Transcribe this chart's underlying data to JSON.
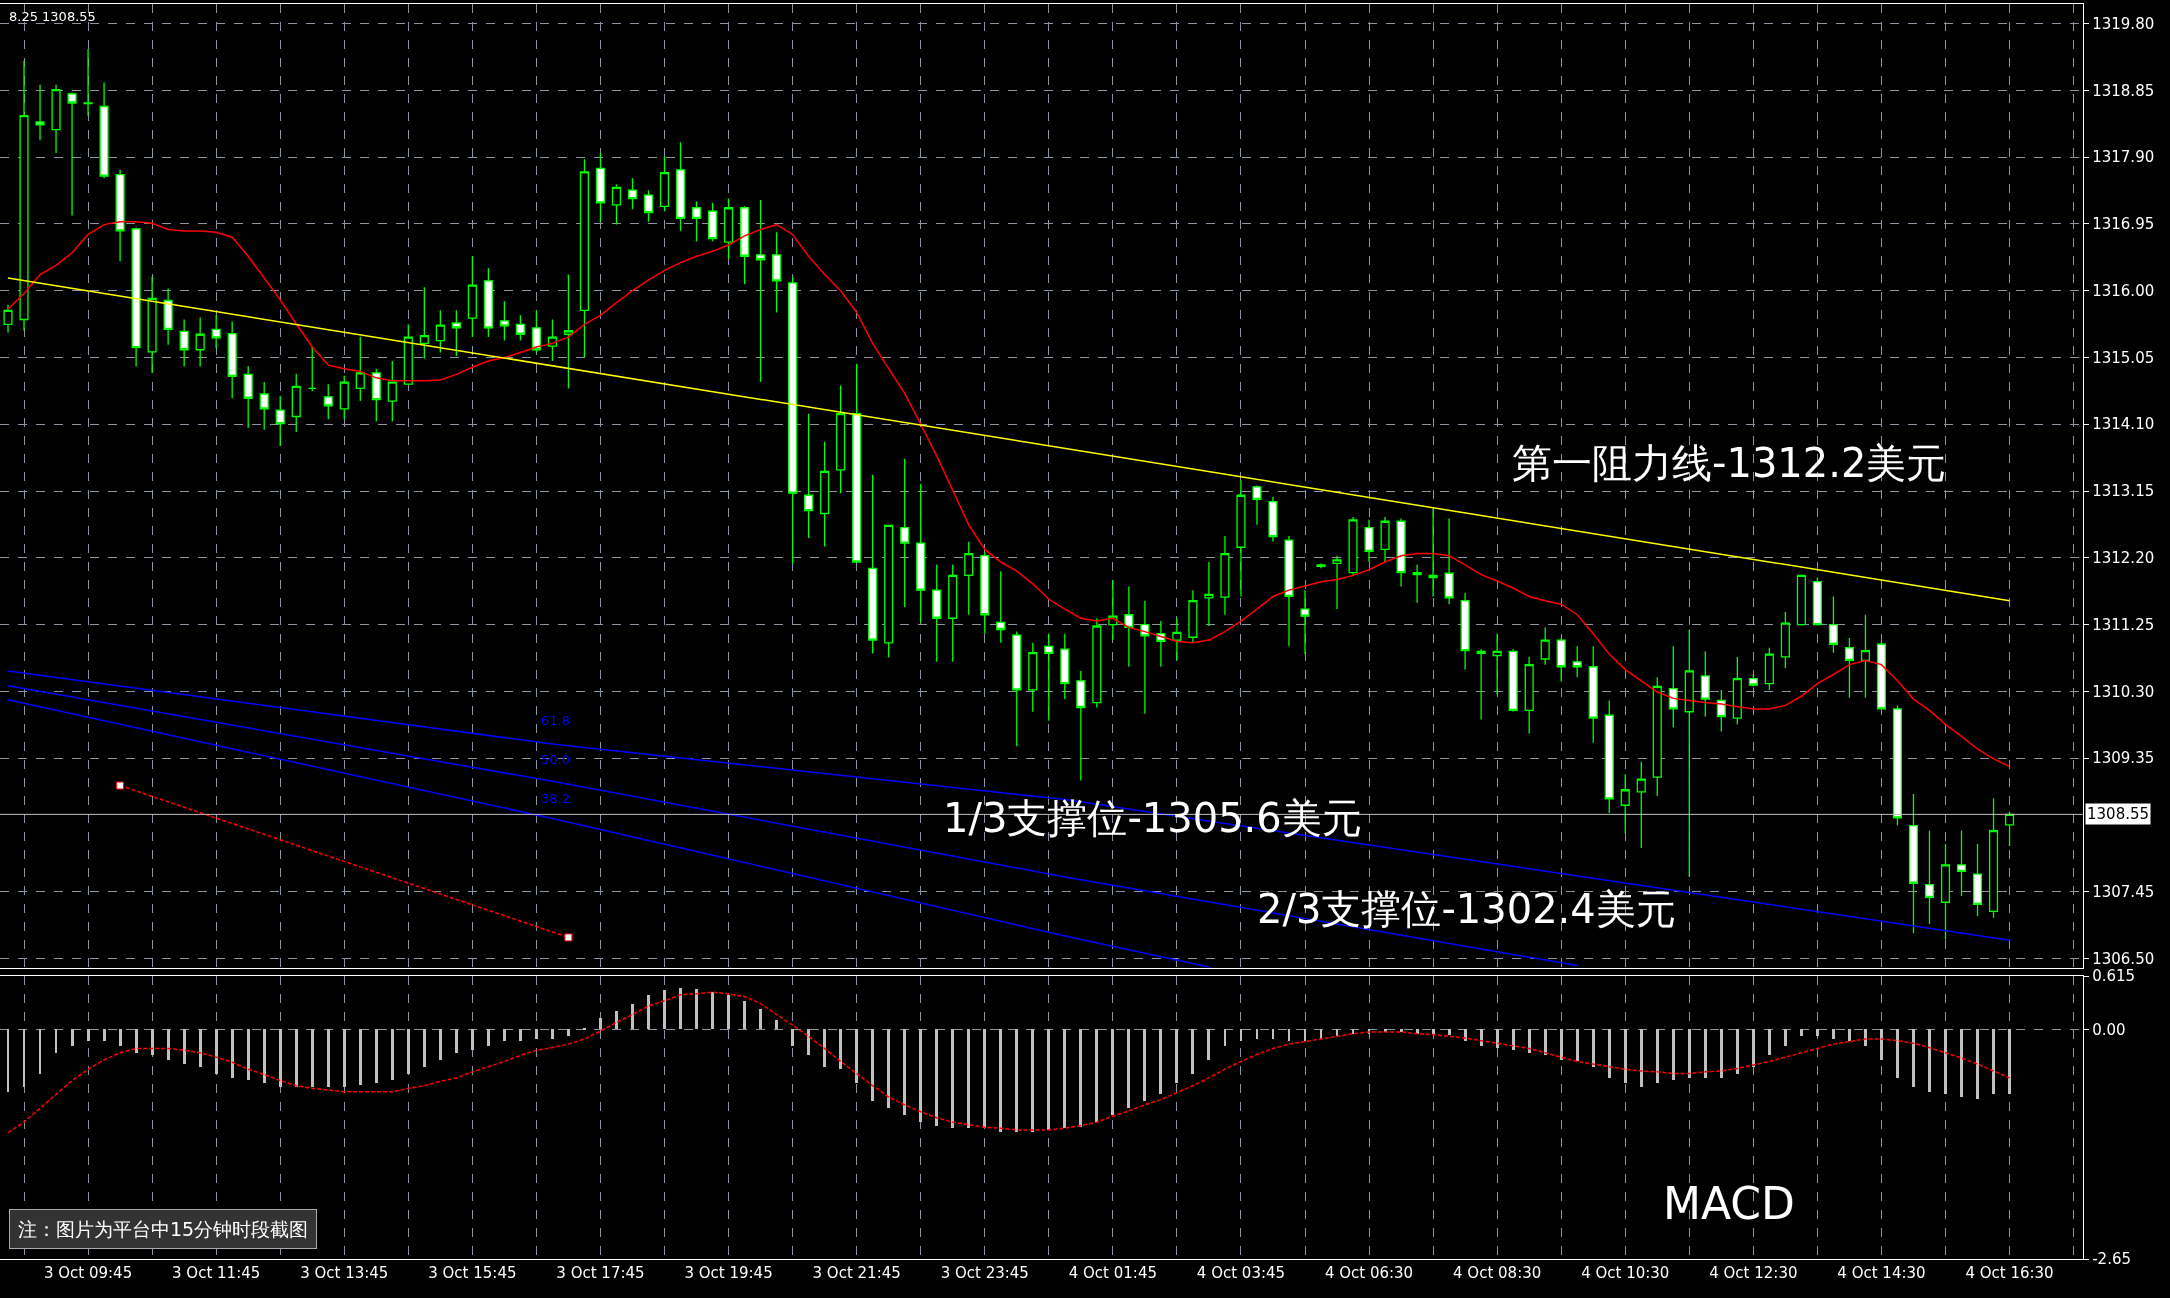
{
  "chart_data": [
    {
      "type": "candlestick",
      "grid": true,
      "categories": [
        null,
        null,
        null,
        null,
        null,
        null,
        null,
        null,
        null,
        null,
        null,
        null,
        null,
        null,
        null,
        null,
        null,
        null,
        null,
        null,
        null,
        null,
        null,
        null,
        null,
        null,
        null,
        null,
        null,
        null,
        null,
        null,
        null,
        null,
        null,
        null,
        null,
        null,
        null,
        null,
        null,
        null,
        null,
        null,
        null,
        null,
        null,
        null,
        null,
        null,
        null,
        null,
        null,
        null,
        null,
        null,
        null,
        null,
        null,
        null,
        null,
        null,
        null,
        null,
        null,
        null,
        null,
        null,
        null,
        null,
        null,
        null,
        null,
        null,
        null,
        null,
        null,
        null,
        null,
        null,
        null,
        null,
        null,
        null,
        null,
        null,
        null,
        null,
        null,
        null,
        null,
        null,
        null,
        null,
        null,
        null,
        null,
        null,
        null,
        null,
        null,
        null,
        null,
        null,
        null,
        null,
        null,
        null,
        null,
        null,
        null,
        null,
        null,
        null,
        null,
        null,
        null,
        null,
        null,
        null,
        null,
        null,
        null,
        null,
        null,
        null
      ],
      "ohlc": [
        [
          1315.52,
          1315.8,
          1315.4,
          1315.72
        ],
        [
          1315.59,
          1319.27,
          1315.43,
          1318.49
        ],
        [
          1318.4,
          1318.93,
          1318.14,
          1318.36
        ],
        [
          1318.29,
          1318.93,
          1317.96,
          1318.86
        ],
        [
          1318.8,
          1318.82,
          1317.07,
          1318.67
        ],
        [
          1318.67,
          1319.44,
          1318.49,
          1318.66
        ],
        [
          1318.62,
          1318.96,
          1317.6,
          1317.63
        ],
        [
          1317.65,
          1317.72,
          1316.42,
          1316.85
        ],
        [
          1316.88,
          1316.9,
          1314.92,
          1315.19
        ],
        [
          1315.13,
          1316.2,
          1314.83,
          1315.89
        ],
        [
          1315.86,
          1316.03,
          1315.23,
          1315.45
        ],
        [
          1315.42,
          1315.59,
          1314.92,
          1315.16
        ],
        [
          1315.16,
          1315.62,
          1314.92,
          1315.38
        ],
        [
          1315.45,
          1315.65,
          1315.18,
          1315.33
        ],
        [
          1315.39,
          1315.56,
          1314.47,
          1314.78
        ],
        [
          1314.81,
          1314.93,
          1314.05,
          1314.47
        ],
        [
          1314.53,
          1314.7,
          1314.02,
          1314.32
        ],
        [
          1314.3,
          1314.5,
          1313.79,
          1314.11
        ],
        [
          1314.21,
          1314.82,
          1313.99,
          1314.64
        ],
        [
          1314.61,
          1315.2,
          1314.57,
          1314.61
        ],
        [
          1314.49,
          1314.67,
          1314.17,
          1314.36
        ],
        [
          1314.32,
          1314.79,
          1314.17,
          1314.7
        ],
        [
          1314.61,
          1315.34,
          1314.43,
          1314.83
        ],
        [
          1314.83,
          1314.89,
          1314.14,
          1314.45
        ],
        [
          1314.43,
          1315.0,
          1314.14,
          1314.7
        ],
        [
          1314.67,
          1315.52,
          1314.67,
          1315.34
        ],
        [
          1315.25,
          1316.05,
          1315.03,
          1315.36
        ],
        [
          1315.29,
          1315.72,
          1315.12,
          1315.51
        ],
        [
          1315.54,
          1315.72,
          1315.07,
          1315.47
        ],
        [
          1315.61,
          1316.49,
          1315.34,
          1316.08
        ],
        [
          1316.14,
          1316.32,
          1315.34,
          1315.47
        ],
        [
          1315.57,
          1315.85,
          1315.29,
          1315.5
        ],
        [
          1315.52,
          1315.65,
          1315.29,
          1315.38
        ],
        [
          1315.47,
          1315.72,
          1315.12,
          1315.16
        ],
        [
          1315.21,
          1315.59,
          1315.0,
          1315.34
        ],
        [
          1315.38,
          1316.23,
          1314.61,
          1315.43
        ],
        [
          1315.72,
          1317.87,
          1315.05,
          1317.69
        ],
        [
          1317.74,
          1317.96,
          1316.98,
          1317.25
        ],
        [
          1317.22,
          1317.51,
          1316.94,
          1317.47
        ],
        [
          1317.43,
          1317.6,
          1317.16,
          1317.31
        ],
        [
          1317.36,
          1317.43,
          1316.98,
          1317.11
        ],
        [
          1317.2,
          1317.91,
          1317.13,
          1317.68
        ],
        [
          1317.72,
          1318.11,
          1316.85,
          1317.03
        ],
        [
          1317.18,
          1317.27,
          1316.7,
          1317.03
        ],
        [
          1317.13,
          1317.25,
          1316.7,
          1316.74
        ],
        [
          1316.69,
          1317.31,
          1316.45,
          1317.18
        ],
        [
          1317.18,
          1317.2,
          1316.09,
          1316.49
        ],
        [
          1316.51,
          1317.29,
          1314.7,
          1316.44
        ],
        [
          1316.51,
          1316.83,
          1315.69,
          1316.14
        ],
        [
          1316.11,
          1316.2,
          1312.12,
          1313.12
        ],
        [
          1313.09,
          1314.25,
          1312.48,
          1312.87
        ],
        [
          1312.83,
          1313.85,
          1312.36,
          1313.43
        ],
        [
          1313.45,
          1314.65,
          1313.12,
          1314.25
        ],
        [
          1314.25,
          1314.96,
          1312.14,
          1312.14
        ],
        [
          1312.05,
          1313.38,
          1310.84,
          1311.03
        ],
        [
          1310.99,
          1312.66,
          1310.78,
          1312.66
        ],
        [
          1312.63,
          1313.61,
          1311.5,
          1312.41
        ],
        [
          1312.41,
          1313.25,
          1311.28,
          1311.74
        ],
        [
          1311.74,
          1312.1,
          1310.72,
          1311.34
        ],
        [
          1311.34,
          1312.1,
          1310.72,
          1311.95
        ],
        [
          1311.95,
          1312.43,
          1311.39,
          1312.26
        ],
        [
          1312.23,
          1312.28,
          1311.12,
          1311.39
        ],
        [
          1311.28,
          1312.01,
          1310.99,
          1311.18
        ],
        [
          1311.1,
          1311.15,
          1309.52,
          1310.32
        ],
        [
          1310.32,
          1310.99,
          1310.01,
          1310.85
        ],
        [
          1310.94,
          1311.12,
          1309.88,
          1310.84
        ],
        [
          1310.9,
          1311.12,
          1310.19,
          1310.41
        ],
        [
          1310.45,
          1310.59,
          1309.03,
          1310.07
        ],
        [
          1310.14,
          1311.34,
          1310.07,
          1311.23
        ],
        [
          1311.25,
          1311.88,
          1311.03,
          1311.37
        ],
        [
          1311.39,
          1311.79,
          1310.65,
          1311.21
        ],
        [
          1311.25,
          1311.59,
          1309.98,
          1311.09
        ],
        [
          1311.12,
          1311.3,
          1310.65,
          1311.01
        ],
        [
          1311.03,
          1311.34,
          1310.74,
          1311.14
        ],
        [
          1311.07,
          1311.74,
          1310.99,
          1311.59
        ],
        [
          1311.63,
          1312.14,
          1311.23,
          1311.68
        ],
        [
          1311.64,
          1312.51,
          1311.39,
          1312.26
        ],
        [
          1312.35,
          1313.3,
          1311.65,
          1313.09
        ],
        [
          1313.21,
          1313.23,
          1312.67,
          1313.03
        ],
        [
          1313.0,
          1313.07,
          1312.43,
          1312.5
        ],
        [
          1312.45,
          1312.51,
          1310.94,
          1311.65
        ],
        [
          1311.47,
          1311.74,
          1310.83,
          1311.37
        ],
        [
          1312.08,
          1312.12,
          1312.05,
          1312.1
        ],
        [
          1312.12,
          1312.23,
          1311.47,
          1312.17
        ],
        [
          1311.99,
          1312.78,
          1311.96,
          1312.74
        ],
        [
          1312.63,
          1312.74,
          1312.14,
          1312.29
        ],
        [
          1312.32,
          1312.78,
          1312.14,
          1312.72
        ],
        [
          1312.72,
          1312.76,
          1311.79,
          1311.99
        ],
        [
          1311.99,
          1312.1,
          1311.56,
          1311.96
        ],
        [
          1311.95,
          1312.9,
          1311.65,
          1311.92
        ],
        [
          1311.98,
          1312.76,
          1311.54,
          1311.63
        ],
        [
          1311.59,
          1311.7,
          1310.61,
          1310.88
        ],
        [
          1310.87,
          1310.9,
          1309.9,
          1310.84
        ],
        [
          1310.81,
          1311.12,
          1310.26,
          1310.87
        ],
        [
          1310.87,
          1310.9,
          1310.01,
          1310.03
        ],
        [
          1310.03,
          1310.79,
          1309.7,
          1310.68
        ],
        [
          1310.76,
          1311.21,
          1310.68,
          1311.03
        ],
        [
          1311.03,
          1311.06,
          1310.44,
          1310.65
        ],
        [
          1310.72,
          1310.94,
          1310.5,
          1310.65
        ],
        [
          1310.65,
          1310.94,
          1309.57,
          1309.92
        ],
        [
          1309.96,
          1310.17,
          1308.57,
          1308.77
        ],
        [
          1308.68,
          1309.12,
          1308.28,
          1308.9
        ],
        [
          1308.87,
          1309.3,
          1308.07,
          1309.05
        ],
        [
          1309.08,
          1310.5,
          1308.81,
          1310.37
        ],
        [
          1310.34,
          1310.94,
          1309.79,
          1310.05
        ],
        [
          1310.01,
          1311.18,
          1307.66,
          1310.59
        ],
        [
          1310.52,
          1310.87,
          1309.94,
          1310.19
        ],
        [
          1310.17,
          1310.32,
          1309.73,
          1309.94
        ],
        [
          1309.92,
          1310.79,
          1309.83,
          1310.48
        ],
        [
          1310.48,
          1310.54,
          1310.37,
          1310.39
        ],
        [
          1310.41,
          1310.92,
          1310.32,
          1310.83
        ],
        [
          1310.79,
          1311.43,
          1310.63,
          1311.27
        ],
        [
          1311.25,
          1311.96,
          1311.25,
          1311.95
        ],
        [
          1311.86,
          1311.92,
          1311.25,
          1311.25
        ],
        [
          1311.25,
          1311.65,
          1310.85,
          1310.97
        ],
        [
          1310.92,
          1311.06,
          1310.21,
          1310.74
        ],
        [
          1310.74,
          1311.39,
          1310.21,
          1310.88
        ],
        [
          1310.97,
          1311.01,
          1310.05,
          1310.05
        ],
        [
          1310.05,
          1310.1,
          1308.39,
          1308.5
        ],
        [
          1308.39,
          1308.84,
          1306.86,
          1307.57
        ],
        [
          1307.55,
          1308.32,
          1306.99,
          1307.37
        ],
        [
          1307.3,
          1308.13,
          1306.77,
          1307.83
        ],
        [
          1307.83,
          1308.32,
          1307.39,
          1307.74
        ],
        [
          1307.7,
          1308.13,
          1307.1,
          1307.27
        ],
        [
          1307.17,
          1308.78,
          1307.08,
          1308.32
        ],
        [
          1308.4,
          1308.59,
          1308.1,
          1308.55
        ]
      ],
      "color": "#00ff00",
      "series": [
        {
          "type": "line",
          "color": "#ff0000",
          "values": [
            1315.74,
            1315.96,
            1316.23,
            1316.36,
            1316.54,
            1316.8,
            1316.94,
            1316.98,
            1316.98,
            1316.96,
            1316.87,
            1316.85,
            1316.85,
            1316.83,
            1316.76,
            1316.49,
            1316.18,
            1315.87,
            1315.53,
            1315.2,
            1314.94,
            1314.89,
            1314.85,
            1314.76,
            1314.72,
            1314.72,
            1314.72,
            1314.73,
            1314.81,
            1314.91,
            1315.0,
            1315.05,
            1315.12,
            1315.2,
            1315.25,
            1315.34,
            1315.52,
            1315.65,
            1315.83,
            1316.0,
            1316.15,
            1316.29,
            1316.4,
            1316.49,
            1316.56,
            1316.65,
            1316.78,
            1316.87,
            1316.94,
            1316.8,
            1316.49,
            1316.23,
            1316.0,
            1315.69,
            1315.25,
            1314.89,
            1314.54,
            1314.1,
            1313.65,
            1313.16,
            1312.67,
            1312.32,
            1312.14,
            1312.01,
            1311.83,
            1311.61,
            1311.47,
            1311.34,
            1311.3,
            1311.34,
            1311.21,
            1311.15,
            1311.08,
            1311.01,
            1310.99,
            1311.03,
            1311.15,
            1311.3,
            1311.47,
            1311.65,
            1311.74,
            1311.8,
            1311.86,
            1311.89,
            1311.95,
            1312.03,
            1312.14,
            1312.23,
            1312.26,
            1312.26,
            1312.23,
            1312.1,
            1311.96,
            1311.87,
            1311.77,
            1311.65,
            1311.59,
            1311.54,
            1311.39,
            1311.12,
            1310.83,
            1310.61,
            1310.45,
            1310.29,
            1310.2,
            1310.17,
            1310.14,
            1310.12,
            1310.08,
            1310.05,
            1310.05,
            1310.1,
            1310.23,
            1310.41,
            1310.54,
            1310.68,
            1310.74,
            1310.68,
            1310.45,
            1310.19,
            1310.03,
            1309.83,
            1309.66,
            1309.48,
            1309.34,
            1309.23
          ]
        },
        {
          "type": "line",
          "color": "#ffff00",
          "values": [
            1316.18,
            null,
            null,
            null,
            null,
            null,
            null,
            null,
            null,
            null,
            null,
            null,
            null,
            null,
            null,
            null,
            null,
            null,
            null,
            null,
            null,
            null,
            null,
            null,
            null,
            null,
            null,
            null,
            null,
            null,
            null,
            null,
            null,
            null,
            null,
            null,
            null,
            null,
            null,
            null,
            null,
            null,
            null,
            null,
            null,
            null,
            null,
            null,
            null,
            null,
            null,
            null,
            null,
            null,
            null,
            null,
            null,
            null,
            null,
            null,
            null,
            null,
            null,
            null,
            null,
            null,
            null,
            null,
            null,
            null,
            null,
            null,
            null,
            null,
            null,
            null,
            null,
            null,
            null,
            null,
            null,
            null,
            null,
            null,
            null,
            null,
            null,
            null,
            null,
            null,
            null,
            null,
            null,
            null,
            null,
            null,
            null,
            null,
            null,
            null,
            null,
            null,
            null,
            null,
            null,
            null,
            null,
            null,
            null,
            null,
            null,
            null,
            null,
            null,
            null,
            null,
            null,
            null,
            null,
            null,
            null,
            null,
            null,
            null,
            null,
            1311.59
          ]
        },
        {
          "type": "line",
          "color": "#0000ff",
          "values": [
            1310.59,
            null,
            null,
            null,
            null,
            null,
            null,
            null,
            null,
            null,
            null,
            null,
            null,
            null,
            null,
            null,
            null,
            null,
            null,
            null,
            null,
            null,
            null,
            null,
            null,
            null,
            null,
            null,
            null,
            null,
            null,
            null,
            null,
            null,
            1309.55,
            null,
            null,
            null,
            null,
            null,
            null,
            null,
            null,
            null,
            null,
            null,
            null,
            null,
            null,
            null,
            null,
            null,
            null,
            null,
            null,
            null,
            null,
            null,
            null,
            null,
            null,
            null,
            null,
            null,
            null,
            null,
            1308.76,
            null,
            null,
            null,
            null,
            null,
            null,
            null,
            null,
            null,
            null,
            null,
            null,
            null,
            null,
            null,
            null,
            null,
            null,
            null,
            null,
            null,
            null,
            null,
            null,
            null,
            null,
            null,
            null,
            null,
            null,
            null,
            null,
            null,
            null,
            null,
            null,
            null,
            null,
            null,
            null,
            null,
            null,
            null,
            null,
            null,
            null,
            null,
            null,
            null,
            null,
            null,
            null,
            null,
            null,
            null,
            null,
            null,
            null,
            1306.76
          ]
        },
        {
          "type": "line",
          "color": "#0000ff",
          "values": [
            1310.38,
            null,
            null,
            null,
            null,
            null,
            null,
            null,
            null,
            null,
            null,
            null,
            null,
            null,
            null,
            null,
            null,
            null,
            null,
            null,
            null,
            null,
            null,
            null,
            null,
            null,
            null,
            null,
            null,
            null,
            null,
            null,
            null,
            null,
            1309.02,
            null,
            null,
            null,
            null,
            null,
            null,
            null,
            null,
            null,
            null,
            null,
            null,
            null,
            null,
            null,
            null,
            null,
            null,
            null,
            null,
            null,
            null,
            null,
            null,
            null,
            null,
            null,
            null,
            null,
            null,
            null,
            1307.66,
            null,
            null,
            null,
            null,
            null,
            null,
            null,
            null,
            null,
            null,
            null,
            null,
            null,
            null,
            null,
            null,
            null,
            null,
            null,
            null,
            null,
            null,
            null,
            null,
            null,
            null,
            null,
            null,
            null,
            null,
            null,
            1306.4,
            null,
            null,
            null,
            null,
            null,
            null,
            null,
            null,
            null,
            null,
            null,
            null,
            null,
            null,
            null,
            null,
            null,
            null,
            null,
            null,
            null,
            null,
            null,
            null,
            null,
            null,
            null
          ]
        },
        {
          "type": "line",
          "color": "#0000ff",
          "values": [
            1310.18,
            null,
            null,
            null,
            null,
            null,
            null,
            null,
            null,
            null,
            null,
            null,
            null,
            null,
            null,
            null,
            null,
            null,
            null,
            null,
            null,
            null,
            null,
            null,
            null,
            null,
            null,
            null,
            null,
            null,
            null,
            null,
            null,
            null,
            1308.49,
            null,
            null,
            null,
            null,
            null,
            null,
            null,
            null,
            null,
            null,
            null,
            null,
            null,
            null,
            null,
            null,
            null,
            null,
            null,
            null,
            null,
            null,
            null,
            null,
            null,
            null,
            null,
            null,
            null,
            null,
            null,
            1306.82,
            null,
            null,
            null,
            null,
            null,
            null,
            null,
            null,
            1306.38,
            null,
            null,
            null,
            null,
            null,
            null,
            null,
            null,
            null,
            null,
            null,
            null,
            null,
            null,
            null,
            null,
            null,
            null,
            null,
            null,
            null,
            null,
            null,
            null,
            null,
            null,
            null,
            null,
            null,
            null,
            null,
            null,
            null,
            null,
            null,
            null,
            null,
            null,
            null,
            null,
            null,
            null,
            null,
            null,
            null,
            null,
            null,
            null,
            null,
            null
          ]
        },
        {
          "type": "line",
          "color": "#ff0000",
          "line_style": "dashed",
          "marker": "square",
          "values": [
            null,
            null,
            null,
            null,
            null,
            null,
            null,
            1308.96,
            null,
            null,
            null,
            null,
            null,
            null,
            null,
            null,
            null,
            null,
            null,
            null,
            null,
            null,
            null,
            null,
            null,
            null,
            null,
            null,
            null,
            null,
            null,
            null,
            null,
            null,
            null,
            1306.8,
            null,
            null,
            null,
            null,
            null,
            null,
            null,
            null,
            null,
            null,
            null,
            null,
            null,
            null,
            null,
            null,
            null,
            null,
            null,
            null,
            null,
            null,
            null,
            null,
            null,
            null,
            null,
            null,
            null,
            null,
            null,
            null,
            null,
            null,
            null,
            null,
            null,
            null,
            null,
            null,
            null,
            null,
            null,
            null,
            null,
            null,
            null,
            null,
            null,
            null,
            null,
            null,
            null,
            null,
            null,
            null,
            null,
            null,
            null,
            null,
            null,
            null,
            null,
            null,
            null,
            null,
            null,
            null,
            null,
            null,
            null,
            null,
            null,
            null,
            null,
            null,
            null,
            null,
            null,
            null,
            null,
            null,
            null,
            null,
            null,
            null,
            null,
            null,
            null,
            null
          ]
        }
      ],
      "ylim": [
        1306.36,
        1320.08
      ],
      "yticks": [
        {
          "value": 1319.8,
          "label": "1319.80"
        },
        {
          "value": 1318.85,
          "label": "1318.85"
        },
        {
          "value": 1317.9,
          "label": "1317.90"
        },
        {
          "value": 1316.95,
          "label": "1316.95"
        },
        {
          "value": 1316.0,
          "label": "1316.00"
        },
        {
          "value": 1315.05,
          "label": "1315.05"
        },
        {
          "value": 1314.1,
          "label": "1314.10"
        },
        {
          "value": 1313.15,
          "label": "1313.15"
        },
        {
          "value": 1312.2,
          "label": "1312.20"
        },
        {
          "value": 1311.25,
          "label": "1311.25"
        },
        {
          "value": 1310.3,
          "label": "1310.30"
        },
        {
          "value": 1309.35,
          "label": "1309.35"
        },
        {
          "value": 1307.45,
          "label": "1307.45"
        },
        {
          "value": 1306.5,
          "label": "1306.50"
        }
      ],
      "ref_lines": [
        {
          "axis": "y",
          "value": 1308.55,
          "label": "1308.55",
          "color": "#c0c0c0"
        }
      ],
      "annotations": [
        "8.25 1308.55",
        "第一阻力线-1312.2美元",
        "1/3支撑位-1305.6美元",
        "2/3支撑位-1302.4美元",
        "61.8",
        "50.0",
        "38.2"
      ]
    },
    {
      "type": "bar",
      "grid": true,
      "categories": [
        null,
        null,
        null,
        null,
        null,
        "3 Oct 09:45",
        null,
        null,
        null,
        null,
        null,
        null,
        null,
        "3 Oct 11:45",
        null,
        null,
        null,
        null,
        null,
        null,
        null,
        "3 Oct 13:45",
        null,
        null,
        null,
        null,
        null,
        null,
        null,
        "3 Oct 15:45",
        null,
        null,
        null,
        null,
        null,
        null,
        null,
        "3 Oct 17:45",
        null,
        null,
        null,
        null,
        null,
        null,
        null,
        "3 Oct 19:45",
        null,
        null,
        null,
        null,
        null,
        null,
        null,
        "3 Oct 21:45",
        null,
        null,
        null,
        null,
        null,
        null,
        null,
        "3 Oct 23:45",
        null,
        null,
        null,
        null,
        null,
        null,
        null,
        "4 Oct 01:45",
        null,
        null,
        null,
        null,
        null,
        null,
        null,
        "4 Oct 03:45",
        null,
        null,
        null,
        null,
        null,
        null,
        null,
        "4 Oct 06:30",
        null,
        null,
        null,
        null,
        null,
        null,
        null,
        "4 Oct 08:30",
        null,
        null,
        null,
        null,
        null,
        null,
        null,
        "4 Oct 10:30",
        null,
        null,
        null,
        null,
        null,
        null,
        null,
        "4 Oct 12:30",
        null,
        null,
        null,
        null,
        null,
        null,
        null,
        "4 Oct 14:30",
        null,
        null,
        null,
        null,
        null,
        null,
        null,
        "4 Oct 16:30"
      ],
      "series": [
        {
          "type": "bar",
          "color": "#c0c0c0",
          "values": [
            -0.72,
            -0.67,
            -0.51,
            -0.27,
            -0.19,
            -0.14,
            -0.14,
            -0.19,
            -0.27,
            -0.3,
            -0.35,
            -0.4,
            -0.43,
            -0.51,
            -0.56,
            -0.59,
            -0.62,
            -0.67,
            -0.67,
            -0.67,
            -0.67,
            -0.67,
            -0.64,
            -0.62,
            -0.59,
            -0.51,
            -0.43,
            -0.35,
            -0.27,
            -0.24,
            -0.19,
            -0.14,
            -0.14,
            -0.11,
            -0.11,
            -0.08,
            0.02,
            0.13,
            0.21,
            0.29,
            0.4,
            0.45,
            0.48,
            0.46,
            0.43,
            0.4,
            0.33,
            0.24,
            0.11,
            -0.19,
            -0.3,
            -0.43,
            -0.46,
            -0.62,
            -0.83,
            -0.91,
            -0.99,
            -1.07,
            -1.11,
            -1.14,
            -1.14,
            -1.14,
            -1.18,
            -1.19,
            -1.19,
            -1.16,
            -1.14,
            -1.13,
            -1.07,
            -0.99,
            -0.91,
            -0.83,
            -0.75,
            -0.62,
            -0.51,
            -0.35,
            -0.19,
            -0.14,
            -0.11,
            -0.11,
            -0.14,
            -0.14,
            -0.11,
            -0.08,
            -0.05,
            -0.05,
            -0.03,
            -0.03,
            -0.05,
            -0.05,
            -0.06,
            -0.14,
            -0.19,
            -0.22,
            -0.24,
            -0.27,
            -0.3,
            -0.35,
            -0.37,
            -0.43,
            -0.56,
            -0.62,
            -0.67,
            -0.62,
            -0.59,
            -0.56,
            -0.56,
            -0.56,
            -0.51,
            -0.43,
            -0.3,
            -0.19,
            -0.08,
            -0.08,
            -0.11,
            -0.14,
            -0.19,
            -0.35,
            -0.56,
            -0.67,
            -0.72,
            -0.75,
            -0.78,
            -0.8,
            -0.75,
            -0.75
          ]
        },
        {
          "type": "line",
          "color": "#ff0000",
          "line_style": "dashed",
          "values": [
            -1.19,
            -1.07,
            -0.91,
            -0.75,
            -0.59,
            -0.46,
            -0.35,
            -0.27,
            -0.22,
            -0.22,
            -0.22,
            -0.24,
            -0.27,
            -0.32,
            -0.38,
            -0.46,
            -0.52,
            -0.59,
            -0.65,
            -0.68,
            -0.7,
            -0.72,
            -0.72,
            -0.72,
            -0.72,
            -0.68,
            -0.65,
            -0.6,
            -0.56,
            -0.49,
            -0.43,
            -0.37,
            -0.3,
            -0.24,
            -0.21,
            -0.17,
            -0.11,
            -0.02,
            0.08,
            0.17,
            0.27,
            0.33,
            0.4,
            0.41,
            0.43,
            0.41,
            0.38,
            0.3,
            0.17,
            0.05,
            -0.08,
            -0.22,
            -0.37,
            -0.51,
            -0.65,
            -0.78,
            -0.87,
            -0.95,
            -1.02,
            -1.07,
            -1.1,
            -1.13,
            -1.14,
            -1.16,
            -1.16,
            -1.16,
            -1.14,
            -1.11,
            -1.07,
            -1.0,
            -0.94,
            -0.87,
            -0.81,
            -0.73,
            -0.65,
            -0.56,
            -0.46,
            -0.37,
            -0.29,
            -0.22,
            -0.17,
            -0.14,
            -0.11,
            -0.08,
            -0.05,
            -0.03,
            -0.03,
            -0.03,
            -0.05,
            -0.06,
            -0.08,
            -0.1,
            -0.13,
            -0.16,
            -0.19,
            -0.22,
            -0.27,
            -0.32,
            -0.37,
            -0.4,
            -0.43,
            -0.46,
            -0.48,
            -0.49,
            -0.51,
            -0.51,
            -0.49,
            -0.48,
            -0.45,
            -0.41,
            -0.37,
            -0.32,
            -0.27,
            -0.22,
            -0.17,
            -0.14,
            -0.11,
            -0.11,
            -0.13,
            -0.16,
            -0.21,
            -0.27,
            -0.33,
            -0.4,
            -0.48,
            -0.56
          ]
        }
      ],
      "ylim": [
        -2.65,
        0.615
      ],
      "yticks": [
        {
          "value": 0.615,
          "label": "0.615"
        },
        {
          "value": 0,
          "label": "0.00"
        },
        {
          "value": -2.65,
          "label": "-2.65"
        }
      ],
      "annotations": [
        "MACD",
        "注：图片为平台中15分钟时段截图"
      ]
    }
  ]
}
